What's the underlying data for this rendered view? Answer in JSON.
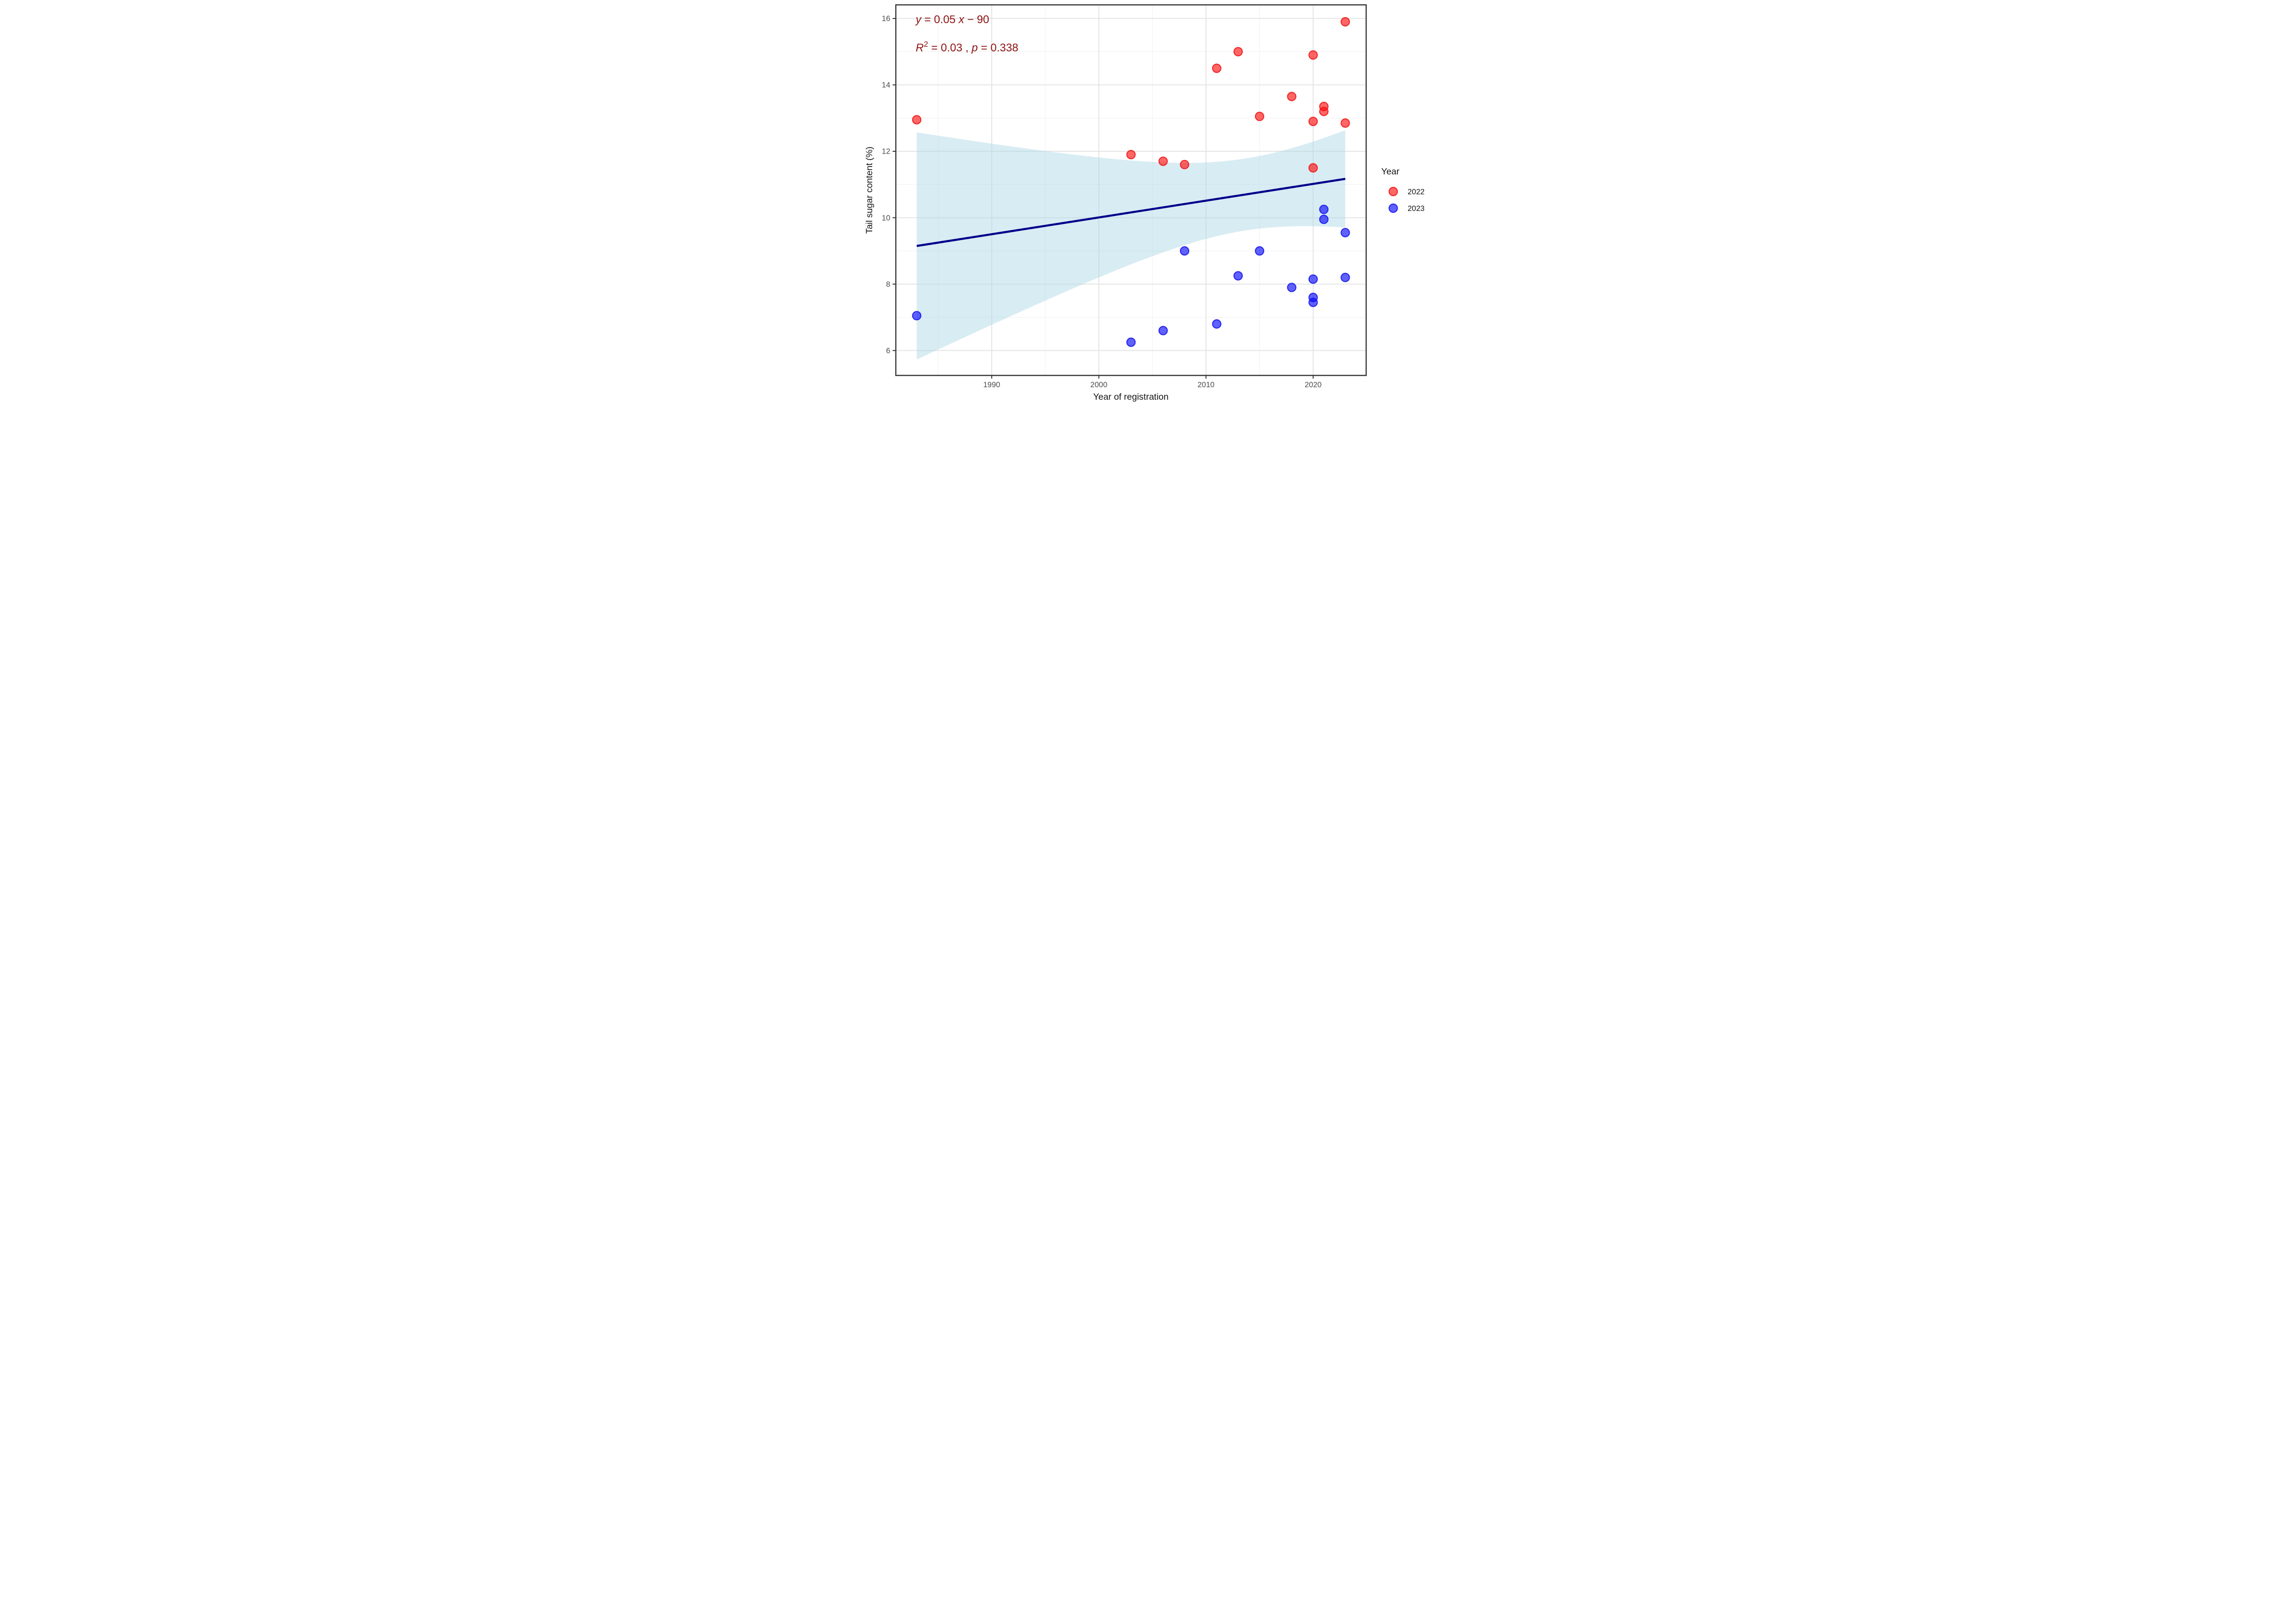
{
  "figure": {
    "kind": "scatter plot with linear regression and 95% confidence band"
  },
  "annotation": {
    "color": "#8E1111",
    "line1_text": "y = 0.05 x − 90",
    "line2_text": "R² = 0.03 , p = 0.338",
    "line1_segments": [
      {
        "t": "y",
        "i": true
      },
      {
        "t": " = 0.05 "
      },
      {
        "t": "x",
        "i": true
      },
      {
        "t": " − 90"
      }
    ],
    "line2_segments": [
      {
        "t": "R",
        "i": true
      },
      {
        "t": "2",
        "sup": true
      },
      {
        "t": " = 0.03 , "
      },
      {
        "t": "p",
        "i": true
      },
      {
        "t": " = 0.338"
      }
    ]
  },
  "legend": {
    "title": "Year",
    "items": [
      {
        "label": "2022",
        "fill": "rgba(255,0,0,0.6)",
        "stroke": "rgba(240,25,25,0.9)"
      },
      {
        "label": "2023",
        "fill": "rgba(0,0,250,0.62)",
        "stroke": "rgba(25,25,240,0.9)"
      }
    ]
  },
  "chart_data": {
    "type": "scatter",
    "title": "",
    "xlabel": "Year of registration",
    "ylabel": "Tail sugar content (%)",
    "xlim": [
      1981.05,
      2024.95
    ],
    "ylim": [
      5.25,
      16.41
    ],
    "x_ticks": [
      1990,
      2000,
      2010,
      2020
    ],
    "x_minor": [
      1985,
      1995,
      2005,
      2015
    ],
    "y_ticks": [
      6,
      8,
      10,
      12,
      14,
      16
    ],
    "y_minor": [
      7,
      9,
      11,
      13,
      15
    ],
    "grid": "major and minor, light gray on white, dark panel border",
    "legend_position": "right",
    "series": [
      {
        "name": "2022",
        "fill": "rgba(255,0,0,0.6)",
        "stroke": "rgba(240,25,25,0.9)",
        "points": [
          [
            1983,
            12.95
          ],
          [
            2003,
            11.9
          ],
          [
            2006,
            11.7
          ],
          [
            2008,
            11.6
          ],
          [
            2011,
            14.5
          ],
          [
            2013,
            15.0
          ],
          [
            2015,
            13.05
          ],
          [
            2018,
            13.65
          ],
          [
            2020,
            14.9
          ],
          [
            2020,
            12.9
          ],
          [
            2020,
            11.5
          ],
          [
            2021,
            13.35
          ],
          [
            2021,
            13.2
          ],
          [
            2023,
            15.9
          ],
          [
            2023,
            12.85
          ]
        ]
      },
      {
        "name": "2023",
        "fill": "rgba(0,0,250,0.62)",
        "stroke": "rgba(25,25,240,0.9)",
        "points": [
          [
            1983,
            7.05
          ],
          [
            2003,
            6.25
          ],
          [
            2006,
            6.6
          ],
          [
            2008,
            9.0
          ],
          [
            2011,
            6.8
          ],
          [
            2013,
            8.25
          ],
          [
            2015,
            9.0
          ],
          [
            2018,
            7.9
          ],
          [
            2020,
            8.15
          ],
          [
            2020,
            7.6
          ],
          [
            2020,
            7.45
          ],
          [
            2021,
            10.25
          ],
          [
            2021,
            9.95
          ],
          [
            2023,
            9.55
          ],
          [
            2023,
            8.2
          ]
        ]
      }
    ],
    "regression": {
      "type": "linear",
      "x_range": [
        1983,
        2023
      ],
      "slope": 0.05,
      "intercept": -90,
      "r_squared": 0.03,
      "p_value": 0.338,
      "ci_level": 0.95,
      "line_color": "#00008B",
      "line_width": 4.5,
      "band_fill": "rgba(173,216,230,0.48)"
    },
    "style": {
      "major_grid": "#E4E4E4",
      "minor_grid": "#F0F0F0",
      "panel_border": "#343434",
      "tick_color": "#333333",
      "point_radius": 9,
      "point_stroke_width": 2.2
    }
  }
}
